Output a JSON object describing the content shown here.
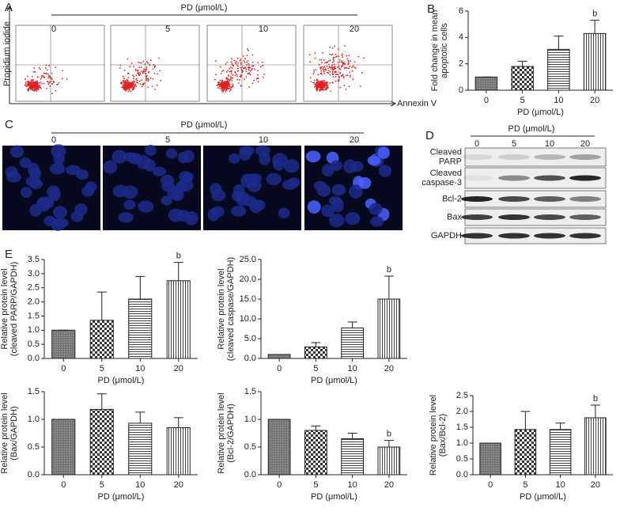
{
  "panel_labels": {
    "a": "A",
    "b": "B",
    "c": "C",
    "d": "D",
    "e": "E"
  },
  "flow": {
    "header": "PD (μmol/L)",
    "doses": [
      "0",
      "5",
      "10",
      "20"
    ],
    "y_label": "Propidium iodide",
    "x_label": "Annexin V"
  },
  "imaging": {
    "header": "PD (μmol/L)",
    "doses": [
      "0",
      "5",
      "10",
      "20"
    ]
  },
  "blot": {
    "header": "PD (μmol/L)",
    "doses": [
      "0",
      "5",
      "10",
      "20"
    ],
    "rows": [
      [
        "Cleaved",
        "PARP"
      ],
      [
        "Cleaved",
        "caspase-3"
      ],
      [
        "Bcl-2"
      ],
      [
        "Bax"
      ],
      [
        "GAPDH"
      ]
    ]
  },
  "chart_data": [
    {
      "type": "bar",
      "y_label": [
        "Fold change in mean",
        "apoptotic cells"
      ],
      "x_label": "PD (μmol/L)",
      "categories": [
        "0",
        "5",
        "10",
        "20"
      ],
      "values": [
        1,
        1.8,
        3.1,
        4.3
      ],
      "errors": [
        0,
        0.4,
        1.0,
        1.0
      ],
      "significance": [
        null,
        null,
        null,
        "b"
      ],
      "ylim": [
        0,
        6
      ],
      "yticks": [
        0,
        2,
        4,
        6
      ]
    },
    {
      "type": "bar",
      "y_label": [
        "Relative protein level",
        "(cleaved PARP/GAPDH)"
      ],
      "x_label": "PD (μmol/L)",
      "categories": [
        "0",
        "5",
        "10",
        "20"
      ],
      "values": [
        1.0,
        1.35,
        2.1,
        2.75
      ],
      "errors": [
        0,
        1.0,
        0.8,
        0.65
      ],
      "significance": [
        null,
        null,
        null,
        "b"
      ],
      "ylim": [
        0,
        3.5
      ],
      "yticks": [
        {
          "value": 0,
          "label": "0.0"
        },
        {
          "value": 0.5,
          "label": "0.5"
        },
        {
          "value": 1,
          "label": "1.0"
        },
        {
          "value": 1.5,
          "label": "1.5"
        },
        {
          "value": 2,
          "label": "2.0"
        },
        {
          "value": 2.5,
          "label": "2.5"
        },
        {
          "value": 3,
          "label": "3.0"
        },
        {
          "value": 3.5,
          "label": "3.5"
        }
      ]
    },
    {
      "type": "bar",
      "y_label": [
        "Relative protein level",
        "(cleaved caspase/GAPDH)"
      ],
      "x_label": "PD (μmol/L)",
      "categories": [
        "0",
        "5",
        "10",
        "20"
      ],
      "values": [
        1,
        2.9,
        7.7,
        15
      ],
      "errors": [
        0,
        1.1,
        1.5,
        5.8
      ],
      "significance": [
        null,
        null,
        null,
        "b"
      ],
      "ylim": [
        0,
        25
      ],
      "yticks": [
        {
          "value": 0,
          "label": "0.0"
        },
        {
          "value": 5,
          "label": "5.0"
        },
        {
          "value": 10,
          "label": "10.0"
        },
        {
          "value": 15,
          "label": "15.0"
        },
        {
          "value": 20,
          "label": "20.0"
        },
        {
          "value": 25,
          "label": "25.0"
        }
      ]
    },
    {
      "type": "bar",
      "y_label": [
        "Relative protein level",
        "(Bax/GAPDH)"
      ],
      "x_label": "PD (μmol/L)",
      "categories": [
        "0",
        "5",
        "10",
        "20"
      ],
      "values": [
        1.0,
        1.18,
        0.93,
        0.85
      ],
      "errors": [
        0,
        0.28,
        0.2,
        0.18
      ],
      "significance": [
        null,
        null,
        null,
        null
      ],
      "ylim": [
        0,
        1.5
      ],
      "yticks": [
        {
          "value": 0,
          "label": "0.0"
        },
        {
          "value": 0.5,
          "label": "0.5"
        },
        {
          "value": 1,
          "label": "1.0"
        },
        {
          "value": 1.5,
          "label": "1.5"
        }
      ]
    },
    {
      "type": "bar",
      "y_label": [
        "Relative protein level",
        "(Bcl-2/GAPDH)"
      ],
      "x_label": "PD (μmol/L)",
      "categories": [
        "0",
        "5",
        "10",
        "20"
      ],
      "values": [
        1.0,
        0.8,
        0.65,
        0.5
      ],
      "errors": [
        0,
        0.08,
        0.1,
        0.12
      ],
      "significance": [
        null,
        null,
        null,
        "b"
      ],
      "ylim": [
        0,
        1.5
      ],
      "yticks": [
        {
          "value": 0,
          "label": "0.0"
        },
        {
          "value": 0.5,
          "label": "0.5"
        },
        {
          "value": 1,
          "label": "1.0"
        },
        {
          "value": 1.5,
          "label": "1.5"
        }
      ]
    },
    {
      "type": "bar",
      "y_label": [
        "Relative protein level",
        "(Bax/Bcl-2)"
      ],
      "x_label": "PD (μmol/L)",
      "categories": [
        "0",
        "5",
        "10",
        "20"
      ],
      "values": [
        1.0,
        1.43,
        1.43,
        1.8
      ],
      "errors": [
        0,
        0.57,
        0.2,
        0.4
      ],
      "significance": [
        null,
        null,
        null,
        "b"
      ],
      "ylim": [
        0,
        2.5
      ],
      "yticks": [
        {
          "value": 0,
          "label": "0.0"
        },
        {
          "value": 0.5,
          "label": "0.5"
        },
        {
          "value": 1,
          "label": "1.0"
        },
        {
          "value": 1.5,
          "label": "1.5"
        },
        {
          "value": 2,
          "label": "2.0"
        },
        {
          "value": 2.5,
          "label": "2.5"
        }
      ]
    }
  ]
}
